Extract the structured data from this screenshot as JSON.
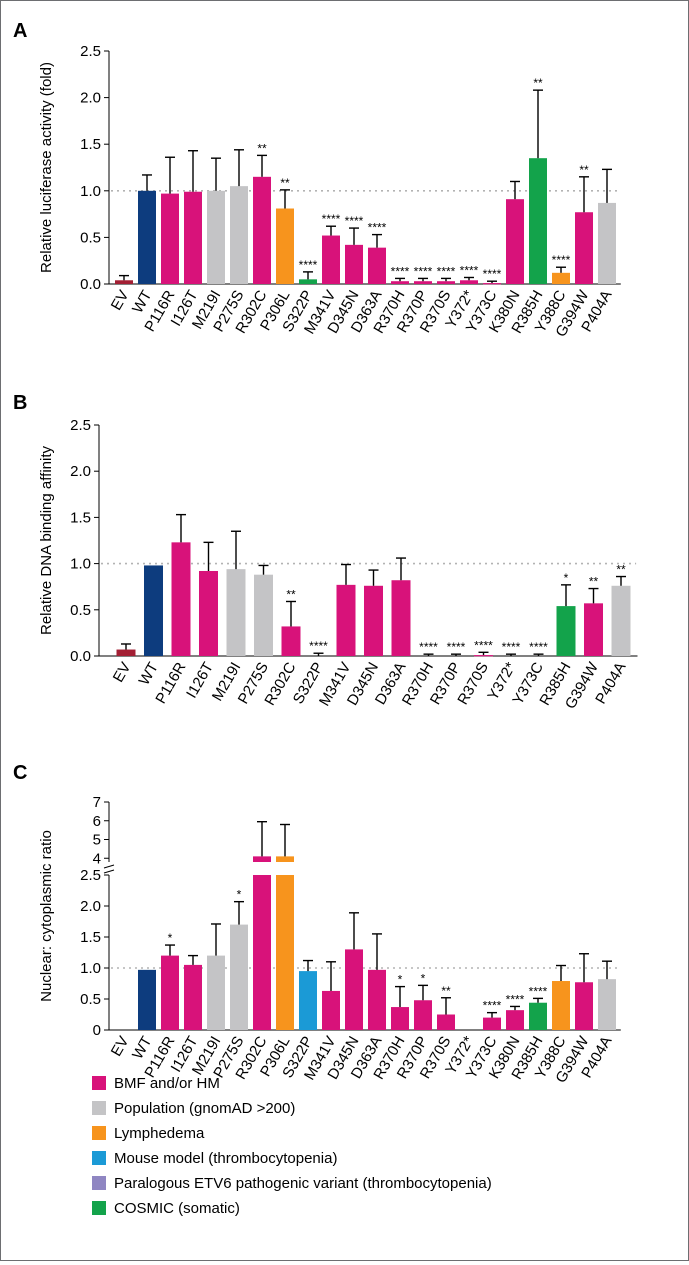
{
  "colors": {
    "EV": "#a31f34",
    "WT": "#0d3c7e",
    "BMF": "#d8127a",
    "POP": "#c4c4c6",
    "LYM": "#f7941d",
    "MOUSE": "#1b9ad6",
    "PARA": "#8f86c2",
    "COSMIC": "#13a34b"
  },
  "legend": [
    {
      "key": "BMF",
      "label": "BMF and/or HM"
    },
    {
      "key": "POP",
      "label": "Population (gnomAD >200)"
    },
    {
      "key": "LYM",
      "label": "Lymphedema"
    },
    {
      "key": "MOUSE",
      "label": "Mouse model (thrombocytopenia)"
    },
    {
      "key": "PARA",
      "label": "Paralogous ETV6 pathogenic variant (thrombocytopenia)"
    },
    {
      "key": "COSMIC",
      "label": "COSMIC (somatic)"
    }
  ],
  "chart_data": [
    {
      "panel": "A",
      "type": "bar",
      "ylabel": "Relative luciferase activity (fold)",
      "ylim": [
        0,
        2.5
      ],
      "yticks": [
        "0.0",
        "0.5",
        "1.0",
        "1.5",
        "2.0",
        "2.5"
      ],
      "reference_line": 1.0,
      "categories": [
        "EV",
        "WT",
        "P116R",
        "I126T",
        "M219I",
        "P275S",
        "R302C",
        "P306L",
        "S322P",
        "M341V",
        "D345N",
        "D363A",
        "R370H",
        "R370P",
        "R370S",
        "Y372*",
        "Y373C",
        "K380N",
        "R385H",
        "Y388C",
        "G394W",
        "P404A"
      ],
      "values": [
        0.04,
        1.0,
        0.97,
        0.99,
        1.0,
        1.05,
        1.15,
        0.81,
        0.05,
        0.52,
        0.42,
        0.39,
        0.03,
        0.03,
        0.03,
        0.04,
        0.01,
        0.91,
        1.35,
        0.12,
        0.77,
        0.87
      ],
      "errors": [
        0.05,
        0.17,
        0.39,
        0.44,
        0.35,
        0.39,
        0.23,
        0.2,
        0.08,
        0.1,
        0.18,
        0.14,
        0.03,
        0.03,
        0.03,
        0.03,
        0.02,
        0.19,
        0.73,
        0.06,
        0.38,
        0.36
      ],
      "groups": [
        "EV",
        "WT",
        "BMF",
        "BMF",
        "POP",
        "POP",
        "BMF",
        "LYM",
        "COSMIC",
        "BMF",
        "BMF",
        "BMF",
        "BMF",
        "BMF",
        "BMF",
        "BMF",
        "BMF",
        "BMF",
        "COSMIC",
        "LYM",
        "BMF",
        "POP"
      ],
      "significance": [
        "",
        "",
        "",
        "",
        "",
        "",
        "**",
        "**",
        "****",
        "****",
        "****",
        "****",
        "****",
        "****",
        "****",
        "****",
        "****",
        "",
        "**",
        "****",
        "**",
        ""
      ]
    },
    {
      "panel": "B",
      "type": "bar",
      "ylabel": "Relative DNA binding affinity",
      "ylim": [
        0,
        2.5
      ],
      "yticks": [
        "0.0",
        "0.5",
        "1.0",
        "1.5",
        "2.0",
        "2.5"
      ],
      "reference_line": 1.0,
      "categories": [
        "EV",
        "WT",
        "P116R",
        "I126T",
        "M219I",
        "P275S",
        "R302C",
        "S322P",
        "M341V",
        "D345N",
        "D363A",
        "R370H",
        "R370P",
        "R370S",
        "Y372*",
        "Y373C",
        "R385H",
        "G394W",
        "P404A"
      ],
      "values": [
        0.07,
        0.98,
        1.23,
        0.92,
        0.94,
        0.88,
        0.32,
        0.0,
        0.77,
        0.76,
        0.82,
        0.0,
        0.0,
        0.01,
        0.0,
        0.0,
        0.54,
        0.57,
        0.76
      ],
      "errors": [
        0.06,
        0.0,
        0.3,
        0.31,
        0.41,
        0.1,
        0.27,
        0.03,
        0.22,
        0.17,
        0.24,
        0.02,
        0.02,
        0.03,
        0.02,
        0.02,
        0.23,
        0.16,
        0.1
      ],
      "groups": [
        "EV",
        "WT",
        "BMF",
        "BMF",
        "POP",
        "POP",
        "BMF",
        "COSMIC",
        "BMF",
        "BMF",
        "BMF",
        "BMF",
        "BMF",
        "BMF",
        "BMF",
        "BMF",
        "COSMIC",
        "BMF",
        "POP"
      ],
      "significance": [
        "",
        "",
        "",
        "",
        "",
        "",
        "**",
        "****",
        "",
        "",
        "",
        "****",
        "****",
        "****",
        "****",
        "****",
        "*",
        "**",
        "**"
      ]
    },
    {
      "panel": "C",
      "type": "bar",
      "ylabel": "Nuclear: cytoplasmic ratio",
      "ylim": [
        0,
        7
      ],
      "axis_break": [
        2.5,
        3.8
      ],
      "yticks_lower": [
        "0",
        "0.5",
        "1.0",
        "1.5",
        "2.0",
        "2.5"
      ],
      "yticks_upper": [
        "4",
        "5",
        "6",
        "7"
      ],
      "reference_line": 1.0,
      "categories": [
        "EV",
        "WT",
        "P116R",
        "I126T",
        "M219I",
        "P275S",
        "R302C",
        "P306L",
        "S322P",
        "M341V",
        "D345N",
        "D363A",
        "R370H",
        "R370P",
        "R370S",
        "Y372*",
        "Y373C",
        "K380N",
        "R385H",
        "Y388C",
        "G394W",
        "P404A"
      ],
      "values": [
        0,
        0.97,
        1.2,
        1.05,
        1.2,
        1.7,
        4.1,
        4.1,
        0.95,
        0.63,
        1.3,
        0.97,
        0.37,
        0.48,
        0.25,
        0,
        0.2,
        0.32,
        0.44,
        0.79,
        0.77,
        0.82
      ],
      "errors": [
        0,
        0,
        0.17,
        0.15,
        0.51,
        0.37,
        1.85,
        1.7,
        0.17,
        0.47,
        0.59,
        0.58,
        0.33,
        0.24,
        0.27,
        0,
        0.08,
        0.06,
        0.07,
        0.25,
        0.46,
        0.29
      ],
      "groups": [
        "EV",
        "WT",
        "BMF",
        "BMF",
        "POP",
        "POP",
        "BMF",
        "LYM",
        "MOUSE",
        "BMF",
        "BMF",
        "BMF",
        "BMF",
        "BMF",
        "BMF",
        "BMF",
        "BMF",
        "BMF",
        "COSMIC",
        "LYM",
        "BMF",
        "POP"
      ],
      "significance": [
        "",
        "",
        "*",
        "",
        "",
        "*",
        "",
        "",
        "",
        "",
        "",
        "",
        "*",
        "*",
        "**",
        "",
        "****",
        "****",
        "****",
        "",
        "",
        ""
      ]
    }
  ]
}
